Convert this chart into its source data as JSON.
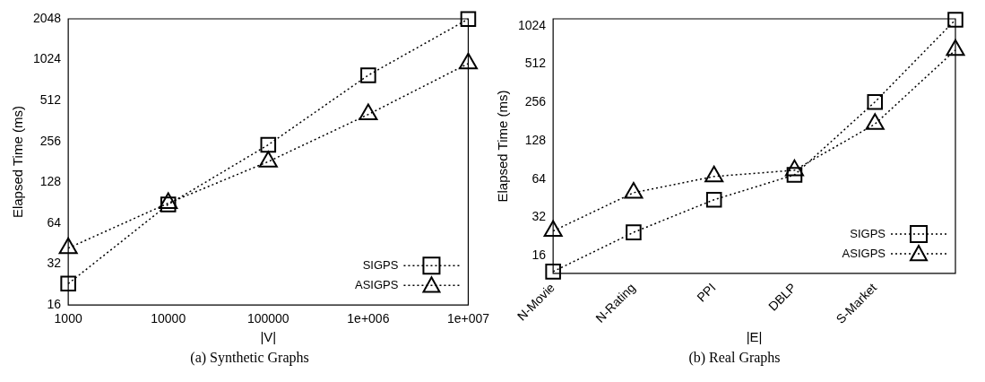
{
  "chart_data": [
    {
      "type": "line",
      "xlabel": "|V|",
      "ylabel": "Elapsed Time (ms)",
      "annotations": [
        "(a) Synthetic Graphs"
      ],
      "x": [
        1000,
        10000,
        100000,
        1000000,
        10000000
      ],
      "log": "xy",
      "grid": false,
      "legend": "bottom right",
      "line_style": "dotted",
      "xlim": [
        1000,
        10000000
      ],
      "xticks": [
        1000,
        10000,
        100000,
        {
          "value": 1000000,
          "label": "1e+006"
        },
        {
          "value": 10000000,
          "label": "1e+007"
        }
      ],
      "ylim": [
        16,
        2048
      ],
      "yticks": [
        16,
        32,
        64,
        128,
        256,
        512,
        1024,
        2048
      ],
      "series": [
        {
          "name": "SIGPS",
          "color": "#000000",
          "marker": "square",
          "values": [
            23,
            88,
            242,
            787,
            2040
          ]
        },
        {
          "name": "ASIGPS",
          "color": "#000000",
          "marker": "triangle",
          "values": [
            42,
            90,
            182,
            405,
            960
          ]
        }
      ]
    },
    {
      "type": "line",
      "xlabel": "|E|",
      "ylabel": "Elapsed Time (ms)",
      "annotations": [
        "(b) Real Graphs"
      ],
      "categories": [
        "N-Movie",
        "N-Rating",
        "PPI",
        "DBLP",
        "S-Market",
        null
      ],
      "log": "y",
      "grid": false,
      "legend": "bottom right",
      "line_style": "dotted",
      "ylim": [
        11.6,
        1160
      ],
      "yticks": [
        16,
        32,
        64,
        128,
        256,
        512,
        1024
      ],
      "series": [
        {
          "name": "SIGPS",
          "color": "#000000",
          "marker": "square",
          "values": [
            12,
            24.4,
            44,
            69,
            258,
            1140
          ]
        },
        {
          "name": "ASIGPS",
          "color": "#000000",
          "marker": "triangle",
          "values": [
            25,
            50,
            67,
            75,
            173,
            660
          ]
        }
      ]
    }
  ]
}
